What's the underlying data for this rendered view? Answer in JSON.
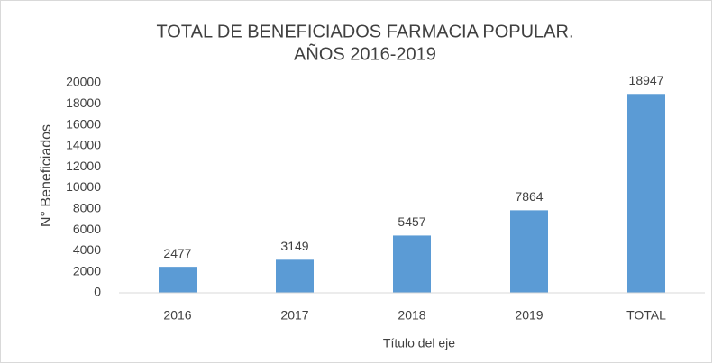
{
  "chart_data": {
    "type": "bar",
    "title": [
      "TOTAL DE BENEFICIADOS FARMACIA POPULAR.",
      "AÑOS 2016-2019"
    ],
    "x_label": "Título del eje",
    "y_label": "N° Beneficiados",
    "categories": [
      "2016",
      "2017",
      "2018",
      "2019",
      "TOTAL"
    ],
    "values": [
      2477,
      3149,
      5457,
      7864,
      18947
    ],
    "color": "#5b9bd5",
    "ylim": [
      0,
      20000
    ],
    "yticks": [
      0,
      2000,
      4000,
      6000,
      8000,
      10000,
      12000,
      14000,
      16000,
      18000,
      20000
    ],
    "grid": false
  }
}
